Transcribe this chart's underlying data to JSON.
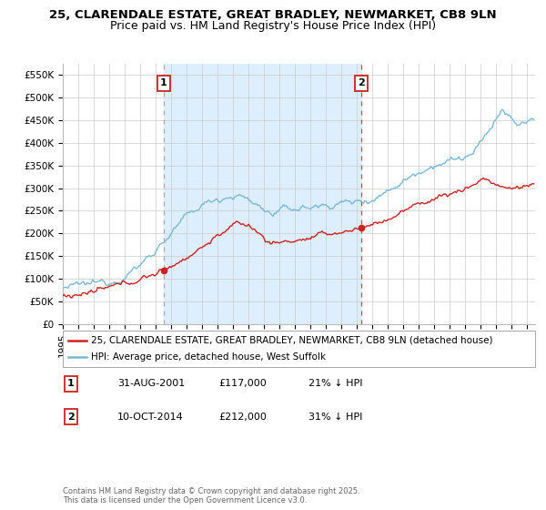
{
  "title_line1": "25, CLARENDALE ESTATE, GREAT BRADLEY, NEWMARKET, CB8 9LN",
  "title_line2": "Price paid vs. HM Land Registry's House Price Index (HPI)",
  "ylim": [
    0,
    575000
  ],
  "yticks": [
    0,
    50000,
    100000,
    150000,
    200000,
    250000,
    300000,
    350000,
    400000,
    450000,
    500000,
    550000
  ],
  "ytick_labels": [
    "£0",
    "£50K",
    "£100K",
    "£150K",
    "£200K",
    "£250K",
    "£300K",
    "£350K",
    "£400K",
    "£450K",
    "£500K",
    "£550K"
  ],
  "hpi_color": "#7ab8d9",
  "price_color": "#cc2222",
  "vline1_color": "#aaaaaa",
  "vline2_color": "#dd4444",
  "shade_color": "#ddeeff",
  "sale1_month": 78,
  "sale2_month": 231,
  "sale1_price": 117000,
  "sale2_price": 212000,
  "sale1_date": "31-AUG-2001",
  "sale2_date": "10-OCT-2014",
  "sale1_pct": "21% ↓ HPI",
  "sale2_pct": "31% ↓ HPI",
  "legend_line1": "25, CLARENDALE ESTATE, GREAT BRADLEY, NEWMARKET, CB8 9LN (detached house)",
  "legend_line2": "HPI: Average price, detached house, West Suffolk",
  "footnote": "Contains HM Land Registry data © Crown copyright and database right 2025.\nThis data is licensed under the Open Government Licence v3.0.",
  "bg_color": "#ffffff",
  "grid_color": "#cccccc",
  "title_fontsize": 9.5,
  "tick_fontsize": 7.5,
  "legend_fontsize": 7.5,
  "table_fontsize": 8.0,
  "footnote_fontsize": 6.0
}
